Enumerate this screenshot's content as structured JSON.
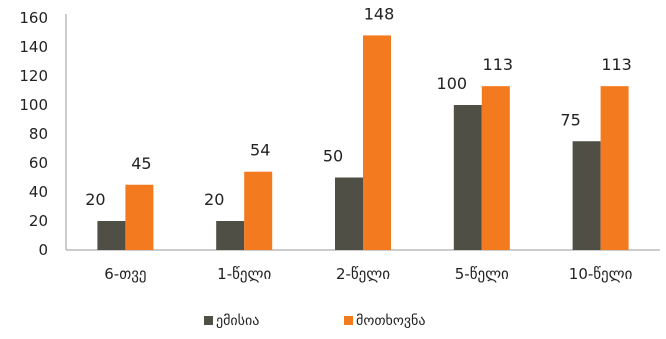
{
  "chart_data": {
    "type": "bar",
    "categories": [
      "6-თვე",
      "1-წელი",
      "2-წელი",
      "5-წელი",
      "10-წელი"
    ],
    "series": [
      {
        "name": "ემისია",
        "values": [
          20,
          20,
          50,
          100,
          75
        ],
        "color": "#4f4f45"
      },
      {
        "name": "მოთხოვნა",
        "values": [
          45,
          54,
          148,
          113,
          113
        ],
        "color": "#f47a20"
      }
    ],
    "yticks": [
      0,
      20,
      40,
      60,
      80,
      100,
      120,
      140,
      160
    ],
    "ylim": [
      0,
      160
    ],
    "grid": false,
    "legend_position": "bottom"
  }
}
